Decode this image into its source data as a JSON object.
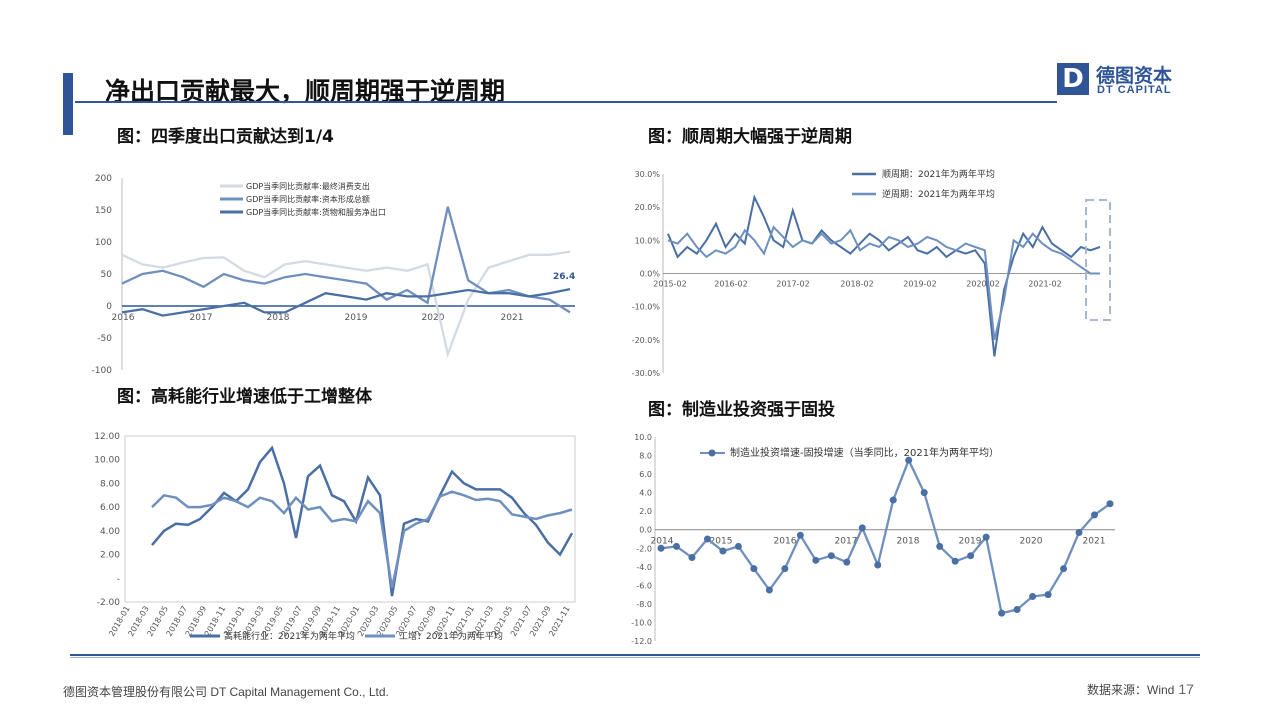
{
  "header": {
    "title": "净出口贡献最大，顺周期强于逆周期",
    "logo_letter": "D",
    "logo_cn": "德图资本",
    "logo_en": "DT CAPITAL"
  },
  "captions": {
    "c1": "图：四季度出口贡献达到1/4",
    "c2": "图：顺周期大幅强于逆周期",
    "c3": "图：高耗能行业增速低于工增整体",
    "c4": "图：制造业投资强于固投"
  },
  "footer": {
    "company": "德图资本管理股份有限公司  DT Capital Management  Co., Ltd.",
    "source": "数据来源：Wind",
    "page": "17"
  },
  "colors": {
    "brand": "#2f5597",
    "series_dark": "#4a6fa5",
    "series_mid": "#6f8fbf",
    "series_light": "#d4dae3"
  },
  "chart_data": [
    {
      "type": "line",
      "ylim": [
        -100,
        200
      ],
      "y_ticks": [
        "200",
        "150",
        "100",
        "50",
        "0",
        "-50",
        "-100"
      ],
      "x_labels": [
        "2016",
        "2017",
        "2018",
        "2019",
        "2020",
        "2021"
      ],
      "annotation": "26.4",
      "grid": false,
      "legend_position": "top",
      "series": [
        {
          "name": "GDP当季同比贡献率:最终消费支出",
          "values": [
            80,
            65,
            60,
            68,
            75,
            76,
            55,
            45,
            65,
            70,
            65,
            60,
            55,
            60,
            55,
            65,
            -75,
            10,
            60,
            70,
            80,
            80,
            85
          ]
        },
        {
          "name": "GDP当季同比贡献率:资本形成总额",
          "values": [
            35,
            50,
            55,
            45,
            30,
            50,
            40,
            35,
            45,
            50,
            45,
            40,
            35,
            10,
            25,
            5,
            155,
            40,
            20,
            25,
            15,
            10,
            -10
          ]
        },
        {
          "name": "GDP当季同比贡献率:货物和服务净出口",
          "values": [
            -10,
            -5,
            -15,
            -10,
            -5,
            0,
            5,
            -10,
            -10,
            5,
            20,
            15,
            10,
            20,
            15,
            15,
            20,
            25,
            20,
            20,
            15,
            20,
            26.4
          ]
        }
      ]
    },
    {
      "type": "line",
      "ylim": [
        -30,
        30
      ],
      "y_ticks": [
        "30.0%",
        "20.0%",
        "10.0%",
        "0.0%",
        "-10.0%",
        "-20.0%",
        "-30.0%"
      ],
      "x_labels": [
        "2015-02",
        "2016-02",
        "2017-02",
        "2018-02",
        "2019-02",
        "2020-02",
        "2021-02"
      ],
      "grid": false,
      "legend_position": "top",
      "series": [
        {
          "name": "顺周期：2021年为两年平均",
          "values": [
            12,
            5,
            8,
            6,
            10,
            15,
            8,
            12,
            9,
            23,
            17,
            10,
            8,
            19,
            10,
            9,
            13,
            10,
            8,
            6,
            9,
            12,
            10,
            7,
            9,
            11,
            7,
            6,
            8,
            5,
            7,
            6,
            7,
            3,
            -25,
            -5,
            5,
            12,
            8,
            14,
            9,
            7,
            5,
            8,
            7,
            8
          ]
        },
        {
          "name": "逆周期：2021年为两年平均",
          "values": [
            10,
            9,
            12,
            8,
            5,
            7,
            6,
            8,
            13,
            10,
            6,
            14,
            11,
            8,
            10,
            9,
            12,
            9,
            10,
            13,
            7,
            9,
            8,
            11,
            10,
            8,
            9,
            11,
            10,
            8,
            7,
            9,
            8,
            7,
            -20,
            -8,
            10,
            8,
            12,
            9,
            7,
            6,
            4,
            2,
            0,
            0
          ]
        }
      ]
    },
    {
      "type": "line",
      "ylim": [
        -2,
        12
      ],
      "y_ticks": [
        "12.00",
        "10.00",
        "8.00",
        "6.00",
        "4.00",
        "2.00",
        "-",
        "-2.00"
      ],
      "x_labels": [
        "2018-01",
        "2018-03",
        "2018-05",
        "2018-07",
        "2018-09",
        "2018-11",
        "2019-01",
        "2019-03",
        "2019-05",
        "2019-07",
        "2019-09",
        "2019-11",
        "2020-01",
        "2020-03",
        "2020-05",
        "2020-07",
        "2020-09",
        "2020-11",
        "2021-01",
        "2021-03",
        "2021-05",
        "2021-07",
        "2021-09",
        "2021-11"
      ],
      "grid": false,
      "legend_position": "bottom",
      "series": [
        {
          "name": "高耗能行业：2021年为两年平均",
          "values": [
            2.8,
            4.0,
            4.6,
            4.5,
            5.0,
            6.0,
            7.2,
            6.5,
            7.5,
            9.8,
            11.0,
            8.0,
            3.4,
            8.6,
            9.5,
            7.0,
            6.5,
            4.8,
            8.5,
            7.0,
            -1.5,
            4.6,
            5.0,
            4.8,
            7.0,
            9.0,
            8.0,
            7.5,
            7.5,
            7.5,
            6.8,
            5.5,
            4.5,
            3.0,
            2.0,
            3.8
          ]
        },
        {
          "name": "工增：2021年为两年平均",
          "values": [
            6.0,
            7.0,
            6.8,
            6.0,
            6.0,
            6.2,
            6.8,
            6.5,
            6.0,
            6.8,
            6.5,
            5.5,
            6.8,
            5.8,
            6.0,
            4.8,
            5.0,
            4.8,
            6.5,
            5.5,
            -0.8,
            4.0,
            4.6,
            5.0,
            6.9,
            7.3,
            7.0,
            6.6,
            6.7,
            6.5,
            5.4,
            5.2,
            5.0,
            5.3,
            5.5,
            5.8
          ]
        }
      ]
    },
    {
      "type": "line",
      "ylim": [
        -12,
        10
      ],
      "y_ticks": [
        "10.0",
        "8.0",
        "6.0",
        "4.0",
        "2.0",
        "0.0",
        "-2.0",
        "-4.0",
        "-6.0",
        "-8.0",
        "-10.0",
        "-12.0"
      ],
      "x_labels": [
        "2014",
        "2015",
        "2016",
        "2017",
        "2018",
        "2019",
        "2020",
        "2021"
      ],
      "grid": false,
      "legend_position": "top",
      "series": [
        {
          "name": "制造业投资增速-固投增速（当季同比，2021年为两年平均）",
          "values": [
            -2.0,
            -1.8,
            -3.0,
            -1.0,
            -2.3,
            -1.8,
            -4.2,
            -6.5,
            -4.2,
            -0.6,
            -3.3,
            -2.8,
            -3.5,
            0.2,
            -3.8,
            3.2,
            7.5,
            4.0,
            -1.8,
            -3.4,
            -2.8,
            -0.8,
            -9.0,
            -8.6,
            -7.2,
            -7.0,
            -4.2,
            -0.3,
            1.6,
            2.8
          ]
        }
      ]
    }
  ]
}
